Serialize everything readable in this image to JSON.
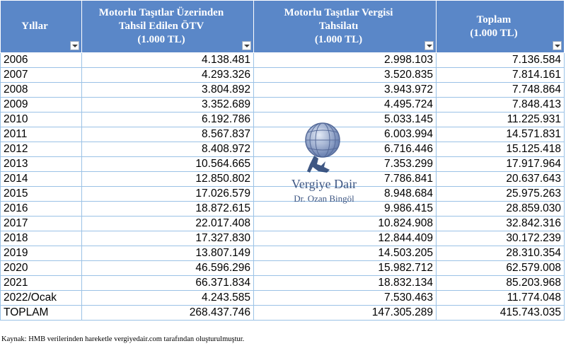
{
  "headers": [
    {
      "lines": [
        "Yıllar"
      ]
    },
    {
      "lines": [
        "Motorlu Taşıtlar Üzerinden",
        "Tahsil Edilen ÖTV",
        "(1.000 TL)"
      ]
    },
    {
      "lines": [
        "Motorlu Taşıtlar Vergisi",
        "Tahsilatı",
        "(1.000 TL)"
      ]
    },
    {
      "lines": [
        "Toplam",
        "(1.000 TL)"
      ]
    }
  ],
  "rows": [
    [
      "2006",
      "4.138.481",
      "2.998.103",
      "7.136.584"
    ],
    [
      "2007",
      "4.293.326",
      "3.520.835",
      "7.814.161"
    ],
    [
      "2008",
      "3.804.892",
      "3.943.972",
      "7.748.864"
    ],
    [
      "2009",
      "3.352.689",
      "4.495.724",
      "7.848.413"
    ],
    [
      "2010",
      "6.192.786",
      "5.033.145",
      "11.225.931"
    ],
    [
      "2011",
      "8.567.837",
      "6.003.994",
      "14.571.831"
    ],
    [
      "2012",
      "8.408.972",
      "6.716.446",
      "15.125.418"
    ],
    [
      "2013",
      "10.564.665",
      "7.353.299",
      "17.917.964"
    ],
    [
      "2014",
      "12.850.802",
      "7.786.841",
      "20.637.643"
    ],
    [
      "2015",
      "17.026.579",
      "8.948.684",
      "25.975.263"
    ],
    [
      "2016",
      "18.872.615",
      "9.986.415",
      "28.859.030"
    ],
    [
      "2017",
      "22.017.408",
      "10.824.908",
      "32.842.316"
    ],
    [
      "2018",
      "17.327.830",
      "12.844.409",
      "30.172.239"
    ],
    [
      "2019",
      "13.807.149",
      "14.503.205",
      "28.310.354"
    ],
    [
      "2020",
      "46.596.296",
      "15.982.712",
      "62.579.008"
    ],
    [
      "2021",
      "66.371.834",
      "18.832.134",
      "85.203.968"
    ],
    [
      "2022/Ocak",
      "4.243.585",
      "7.530.463",
      "11.774.048"
    ],
    [
      "TOPLAM",
      "268.437.746",
      "147.305.289",
      "415.743.035"
    ]
  ],
  "source_note": "Kaynak: HMB verilerinden hareketle vergiyedair.com tarafından oluşturulmuştur.",
  "watermark": {
    "title": "Vergiye Dair",
    "subtitle": "Dr. Ozan Bingöl"
  },
  "colors": {
    "header_bg": "#5a87c8",
    "border": "#9bc2e6"
  }
}
